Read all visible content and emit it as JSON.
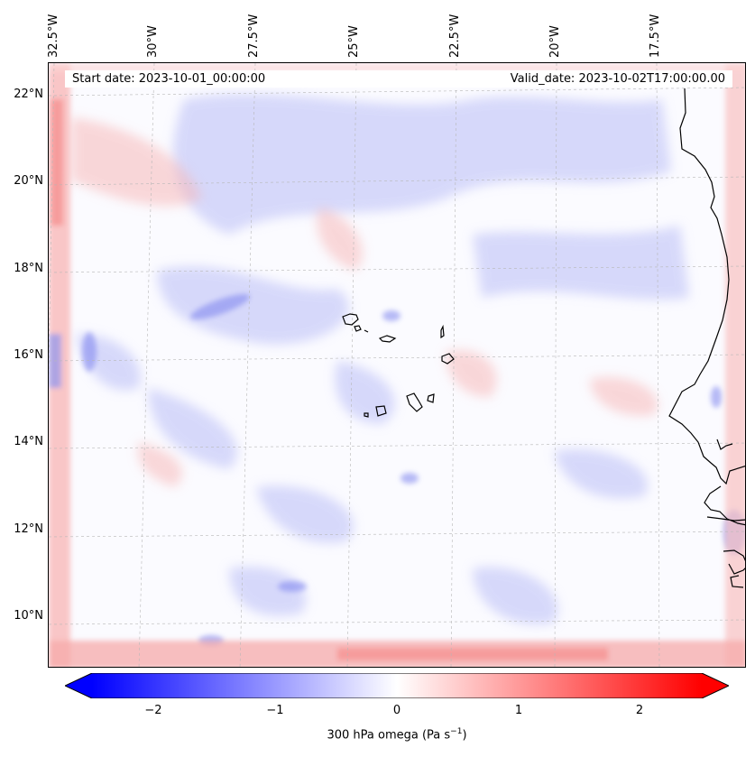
{
  "header": {
    "start_date": "Start date: 2023-10-01_00:00:00",
    "valid_date": "Valid_date: 2023-10-02T17:00:00.00"
  },
  "axes": {
    "lon_labels": [
      "32.5°W",
      "30°W",
      "27.5°W",
      "25°W",
      "22.5°W",
      "20°W",
      "17.5°W"
    ],
    "lat_labels": [
      "22°N",
      "20°N",
      "18°N",
      "16°N",
      "14°N",
      "12°N",
      "10°N"
    ]
  },
  "colorbar": {
    "title": "300 hPa omega (Pa s",
    "title_sup": "−1",
    "title_end": ")",
    "tick_labels": [
      "−2",
      "−1",
      "0",
      "1",
      "2"
    ],
    "range": [
      -2.6,
      2.6
    ],
    "extend": "both",
    "cmap": "bwr"
  },
  "colors": {
    "negative": "#0000ff",
    "neutral": "#ffffff",
    "positive": "#ff0000",
    "coastline": "#000000"
  }
}
